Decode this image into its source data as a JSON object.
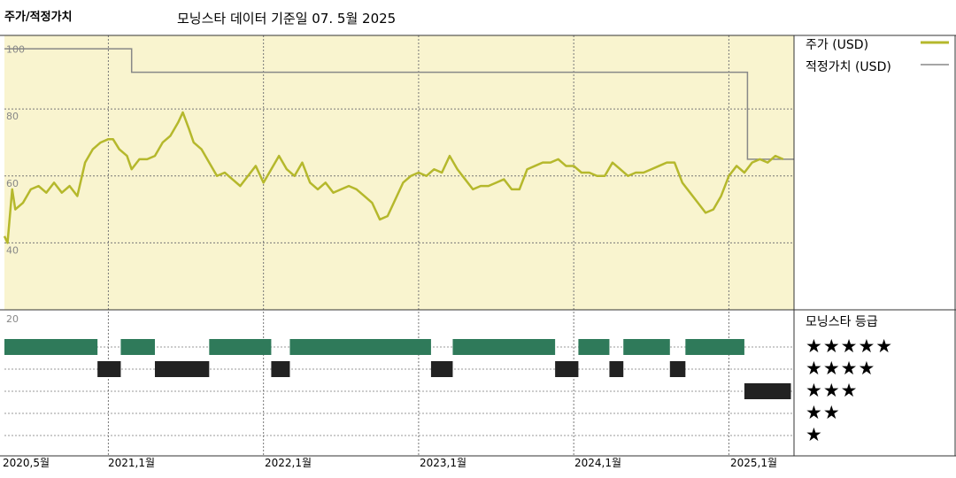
{
  "chart_data": {
    "type": "line",
    "title": "주가/적정가치",
    "subtitle": "모닝스타 데이터 기준일 07. 5월 2025",
    "y_ticks": [
      "100",
      "80",
      "60",
      "40",
      "20"
    ],
    "ylim": [
      20,
      100
    ],
    "x_ticks": [
      "2020,5월",
      "2021,1월",
      "2022,1월",
      "2023,1월",
      "2024,1월",
      "2025,1월"
    ],
    "x_tick_years": [
      2020.33,
      2021.0,
      2022.0,
      2023.0,
      2024.0,
      2025.0
    ],
    "xlim": [
      2020.33,
      2025.42
    ],
    "series": [
      {
        "name": "주가 (USD)",
        "color": "#b5b82c",
        "points": [
          [
            2020.33,
            42
          ],
          [
            2020.35,
            40
          ],
          [
            2020.38,
            56
          ],
          [
            2020.4,
            50
          ],
          [
            2020.45,
            52
          ],
          [
            2020.5,
            56
          ],
          [
            2020.55,
            57
          ],
          [
            2020.6,
            55
          ],
          [
            2020.65,
            58
          ],
          [
            2020.7,
            55
          ],
          [
            2020.75,
            57
          ],
          [
            2020.8,
            54
          ],
          [
            2020.85,
            64
          ],
          [
            2020.9,
            68
          ],
          [
            2020.95,
            70
          ],
          [
            2021.0,
            71
          ],
          [
            2021.03,
            71
          ],
          [
            2021.07,
            68
          ],
          [
            2021.12,
            66
          ],
          [
            2021.15,
            62
          ],
          [
            2021.2,
            65
          ],
          [
            2021.25,
            65
          ],
          [
            2021.3,
            66
          ],
          [
            2021.35,
            70
          ],
          [
            2021.4,
            72
          ],
          [
            2021.45,
            76
          ],
          [
            2021.48,
            79
          ],
          [
            2021.52,
            74
          ],
          [
            2021.55,
            70
          ],
          [
            2021.6,
            68
          ],
          [
            2021.65,
            64
          ],
          [
            2021.7,
            60
          ],
          [
            2021.75,
            61
          ],
          [
            2021.8,
            59
          ],
          [
            2021.85,
            57
          ],
          [
            2021.9,
            60
          ],
          [
            2021.95,
            63
          ],
          [
            2022.0,
            58
          ],
          [
            2022.05,
            62
          ],
          [
            2022.1,
            66
          ],
          [
            2022.15,
            62
          ],
          [
            2022.2,
            60
          ],
          [
            2022.25,
            64
          ],
          [
            2022.3,
            58
          ],
          [
            2022.35,
            56
          ],
          [
            2022.4,
            58
          ],
          [
            2022.45,
            55
          ],
          [
            2022.5,
            56
          ],
          [
            2022.55,
            57
          ],
          [
            2022.6,
            56
          ],
          [
            2022.65,
            54
          ],
          [
            2022.7,
            52
          ],
          [
            2022.75,
            47
          ],
          [
            2022.8,
            48
          ],
          [
            2022.85,
            53
          ],
          [
            2022.9,
            58
          ],
          [
            2022.95,
            60
          ],
          [
            2023.0,
            61
          ],
          [
            2023.05,
            60
          ],
          [
            2023.1,
            62
          ],
          [
            2023.15,
            61
          ],
          [
            2023.2,
            66
          ],
          [
            2023.25,
            62
          ],
          [
            2023.3,
            59
          ],
          [
            2023.35,
            56
          ],
          [
            2023.4,
            57
          ],
          [
            2023.45,
            57
          ],
          [
            2023.5,
            58
          ],
          [
            2023.55,
            59
          ],
          [
            2023.6,
            56
          ],
          [
            2023.65,
            56
          ],
          [
            2023.7,
            62
          ],
          [
            2023.75,
            63
          ],
          [
            2023.8,
            64
          ],
          [
            2023.85,
            64
          ],
          [
            2023.9,
            65
          ],
          [
            2023.95,
            63
          ],
          [
            2024.0,
            63
          ],
          [
            2024.05,
            61
          ],
          [
            2024.1,
            61
          ],
          [
            2024.15,
            60
          ],
          [
            2024.2,
            60
          ],
          [
            2024.25,
            64
          ],
          [
            2024.3,
            62
          ],
          [
            2024.35,
            60
          ],
          [
            2024.4,
            61
          ],
          [
            2024.45,
            61
          ],
          [
            2024.5,
            62
          ],
          [
            2024.55,
            63
          ],
          [
            2024.6,
            64
          ],
          [
            2024.65,
            64
          ],
          [
            2024.7,
            58
          ],
          [
            2024.75,
            55
          ],
          [
            2024.8,
            52
          ],
          [
            2024.85,
            49
          ],
          [
            2024.9,
            50
          ],
          [
            2024.95,
            54
          ],
          [
            2025.0,
            60
          ],
          [
            2025.05,
            63
          ],
          [
            2025.1,
            61
          ],
          [
            2025.15,
            64
          ],
          [
            2025.2,
            65
          ],
          [
            2025.25,
            64
          ],
          [
            2025.3,
            66
          ],
          [
            2025.35,
            65
          ]
        ]
      },
      {
        "name": "적정가치 (USD)",
        "color": "#888888",
        "points": [
          [
            2020.33,
            98
          ],
          [
            2021.15,
            98
          ],
          [
            2021.15,
            91
          ],
          [
            2025.12,
            91
          ],
          [
            2025.12,
            65
          ],
          [
            2025.42,
            65
          ]
        ]
      }
    ],
    "rating_header": "모닝스타 등급",
    "rating_levels": [
      "★★★★★",
      "★★★★",
      "★★★",
      "★★",
      "★"
    ],
    "rating_segments": [
      {
        "from": 2020.33,
        "to": 2020.93,
        "stars": 5
      },
      {
        "from": 2020.93,
        "to": 2021.08,
        "stars": 4
      },
      {
        "from": 2021.08,
        "to": 2021.3,
        "stars": 5
      },
      {
        "from": 2021.3,
        "to": 2021.65,
        "stars": 4
      },
      {
        "from": 2021.65,
        "to": 2022.05,
        "stars": 5
      },
      {
        "from": 2022.05,
        "to": 2022.17,
        "stars": 4
      },
      {
        "from": 2022.17,
        "to": 2023.08,
        "stars": 5
      },
      {
        "from": 2023.08,
        "to": 2023.22,
        "stars": 4
      },
      {
        "from": 2023.22,
        "to": 2023.88,
        "stars": 5
      },
      {
        "from": 2023.88,
        "to": 2024.03,
        "stars": 4
      },
      {
        "from": 2024.03,
        "to": 2024.23,
        "stars": 5
      },
      {
        "from": 2024.23,
        "to": 2024.32,
        "stars": 4
      },
      {
        "from": 2024.32,
        "to": 2024.62,
        "stars": 5
      },
      {
        "from": 2024.62,
        "to": 2024.72,
        "stars": 4
      },
      {
        "from": 2024.72,
        "to": 2025.1,
        "stars": 5
      },
      {
        "from": 2025.1,
        "to": 2025.4,
        "stars": 3
      }
    ],
    "colors": {
      "plot_background": "#f9f4cf",
      "five_star": "#2f7a5a",
      "four_star": "#222222",
      "three_star": "#222222"
    },
    "grid": true,
    "legend_position": "right"
  }
}
